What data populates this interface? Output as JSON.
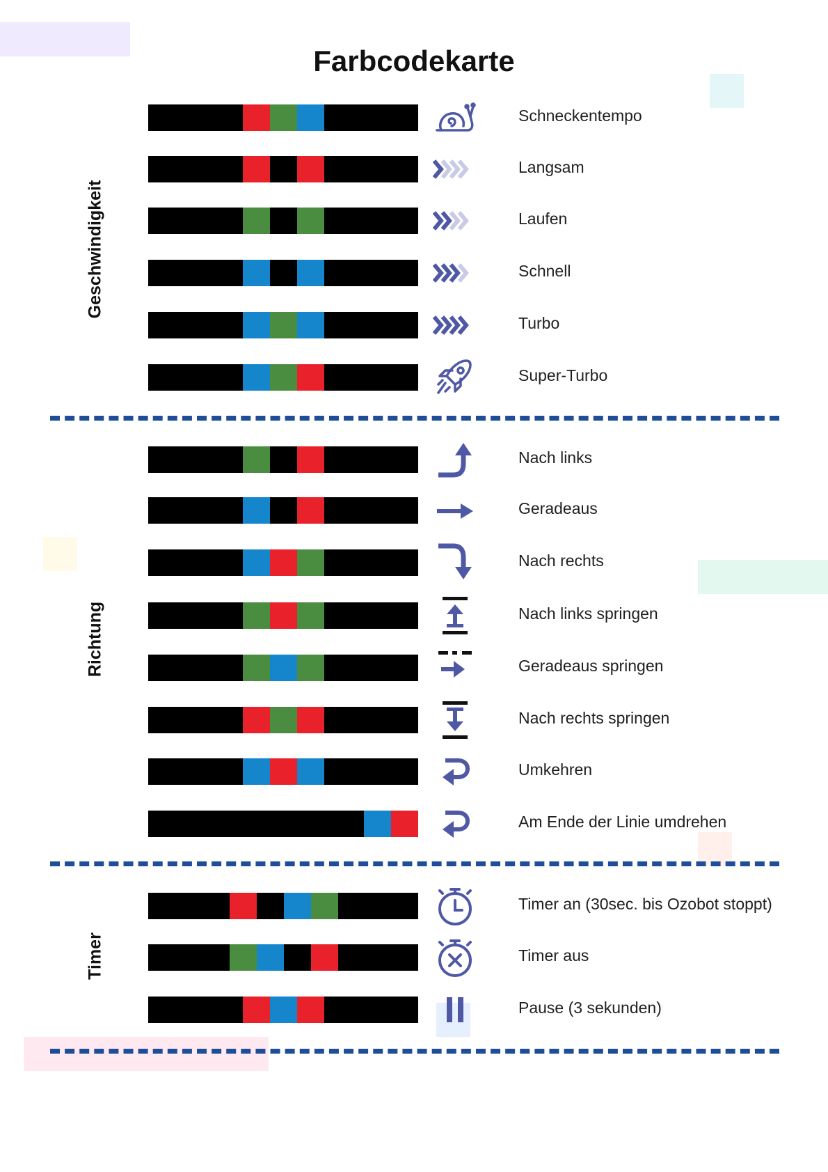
{
  "title": "Farbcodekarte",
  "colors": {
    "black": "#000000",
    "red": "#e8212b",
    "green": "#4a8c40",
    "blue": "#1585cc",
    "icon": "#4f58a5",
    "icon_light": "#c9cbe6",
    "divider": "#1f4e99"
  },
  "sections": [
    {
      "label": "Geschwindigkeit",
      "rows": [
        {
          "label": "Schneckentempo",
          "icon": "snail-icon",
          "code": [
            "red",
            "green",
            "blue"
          ]
        },
        {
          "label": "Langsam",
          "icon": "chevrons-1-of-4-icon",
          "code": [
            "red",
            "black",
            "red"
          ]
        },
        {
          "label": "Laufen",
          "icon": "chevrons-2-of-4-icon",
          "code": [
            "green",
            "black",
            "green"
          ]
        },
        {
          "label": "Schnell",
          "icon": "chevrons-3-of-4-icon",
          "code": [
            "blue",
            "black",
            "blue"
          ]
        },
        {
          "label": "Turbo",
          "icon": "chevrons-4-of-4-icon",
          "code": [
            "blue",
            "green",
            "blue"
          ]
        },
        {
          "label": "Super-Turbo",
          "icon": "rocket-icon",
          "code": [
            "blue",
            "green",
            "red"
          ]
        }
      ]
    },
    {
      "label": "Richtung",
      "rows": [
        {
          "label": "Nach links",
          "icon": "turn-left-arrow-icon",
          "code": [
            "green",
            "black",
            "red"
          ]
        },
        {
          "label": "Geradeaus",
          "icon": "straight-arrow-icon",
          "code": [
            "blue",
            "black",
            "red"
          ]
        },
        {
          "label": "Nach rechts",
          "icon": "turn-right-arrow-icon",
          "code": [
            "blue",
            "red",
            "green"
          ]
        },
        {
          "label": "Nach links springen",
          "icon": "jump-left-icon",
          "code": [
            "green",
            "red",
            "green"
          ]
        },
        {
          "label": "Geradeaus springen",
          "icon": "jump-straight-icon",
          "code": [
            "green",
            "blue",
            "green"
          ]
        },
        {
          "label": "Nach rechts springen",
          "icon": "jump-right-icon",
          "code": [
            "red",
            "green",
            "red"
          ]
        },
        {
          "label": "Umkehren",
          "icon": "u-turn-icon",
          "code": [
            "blue",
            "red",
            "blue"
          ]
        },
        {
          "label": "Am Ende der Linie umdrehen",
          "icon": "u-turn-end-of-line-icon",
          "code": [
            "blue",
            "red"
          ]
        }
      ]
    },
    {
      "label": "Timer",
      "rows": [
        {
          "label": "Timer an (30sec. bis Ozobot stoppt)",
          "icon": "stopwatch-on-icon",
          "code": [
            "red",
            "black",
            "blue",
            "green"
          ]
        },
        {
          "label": "Timer aus",
          "icon": "stopwatch-off-icon",
          "code": [
            "green",
            "blue",
            "black",
            "red"
          ]
        },
        {
          "label": "Pause (3 sekunden)",
          "icon": "pause-icon",
          "code": [
            "red",
            "blue",
            "red"
          ]
        }
      ]
    }
  ]
}
